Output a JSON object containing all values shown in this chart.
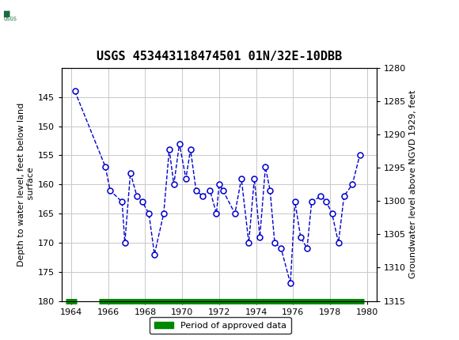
{
  "title": "USGS 453443118474501 01N/32E-10DBB",
  "ylabel_left": "Depth to water level, feet below land\n surface",
  "ylabel_right": "Groundwater level above NGVD 1929, feet",
  "header_color": "#1a6b3c",
  "ylim_left": [
    180,
    140
  ],
  "ylim_right": [
    1315,
    1280
  ],
  "xlim": [
    1963.5,
    1980.5
  ],
  "xticks": [
    1964,
    1966,
    1968,
    1970,
    1972,
    1974,
    1976,
    1978,
    1980
  ],
  "yticks_left": [
    145,
    150,
    155,
    160,
    165,
    170,
    175,
    180
  ],
  "yticks_right": [
    1280,
    1285,
    1290,
    1295,
    1300,
    1305,
    1310,
    1315
  ],
  "data_x": [
    1964.2,
    1965.85,
    1966.1,
    1966.75,
    1966.9,
    1967.2,
    1967.55,
    1967.85,
    1968.2,
    1968.5,
    1969.0,
    1969.3,
    1969.55,
    1969.85,
    1970.2,
    1970.45,
    1970.75,
    1971.1,
    1971.5,
    1971.85,
    1972.0,
    1972.2,
    1972.85,
    1973.2,
    1973.6,
    1973.9,
    1974.2,
    1974.5,
    1974.75,
    1975.0,
    1975.35,
    1975.85,
    1976.1,
    1976.4,
    1976.75,
    1977.0,
    1977.5,
    1977.8,
    1978.1,
    1978.45,
    1978.75,
    1979.2,
    1979.6
  ],
  "data_y": [
    144,
    157,
    161,
    163,
    170,
    158,
    162,
    163,
    165,
    172,
    165,
    154,
    160,
    153,
    159,
    154,
    161,
    162,
    161,
    165,
    160,
    161,
    165,
    159,
    170,
    159,
    169,
    157,
    161,
    170,
    171,
    177,
    163,
    169,
    171,
    163,
    162,
    163,
    165,
    170,
    162,
    160,
    155
  ],
  "line_color": "#0000cc",
  "marker_face": "#ffffff",
  "approved_bar_color": "#008800",
  "background_color": "#ffffff",
  "grid_color": "#c8c8c8",
  "font_size_title": 11,
  "font_size_axis": 8,
  "font_size_tick": 8,
  "approved_bar_y": 180,
  "approved_bar1_x0": 1963.7,
  "approved_bar1_x1": 1964.3,
  "approved_bar2_x0": 1965.5,
  "approved_bar2_x1": 1979.85
}
